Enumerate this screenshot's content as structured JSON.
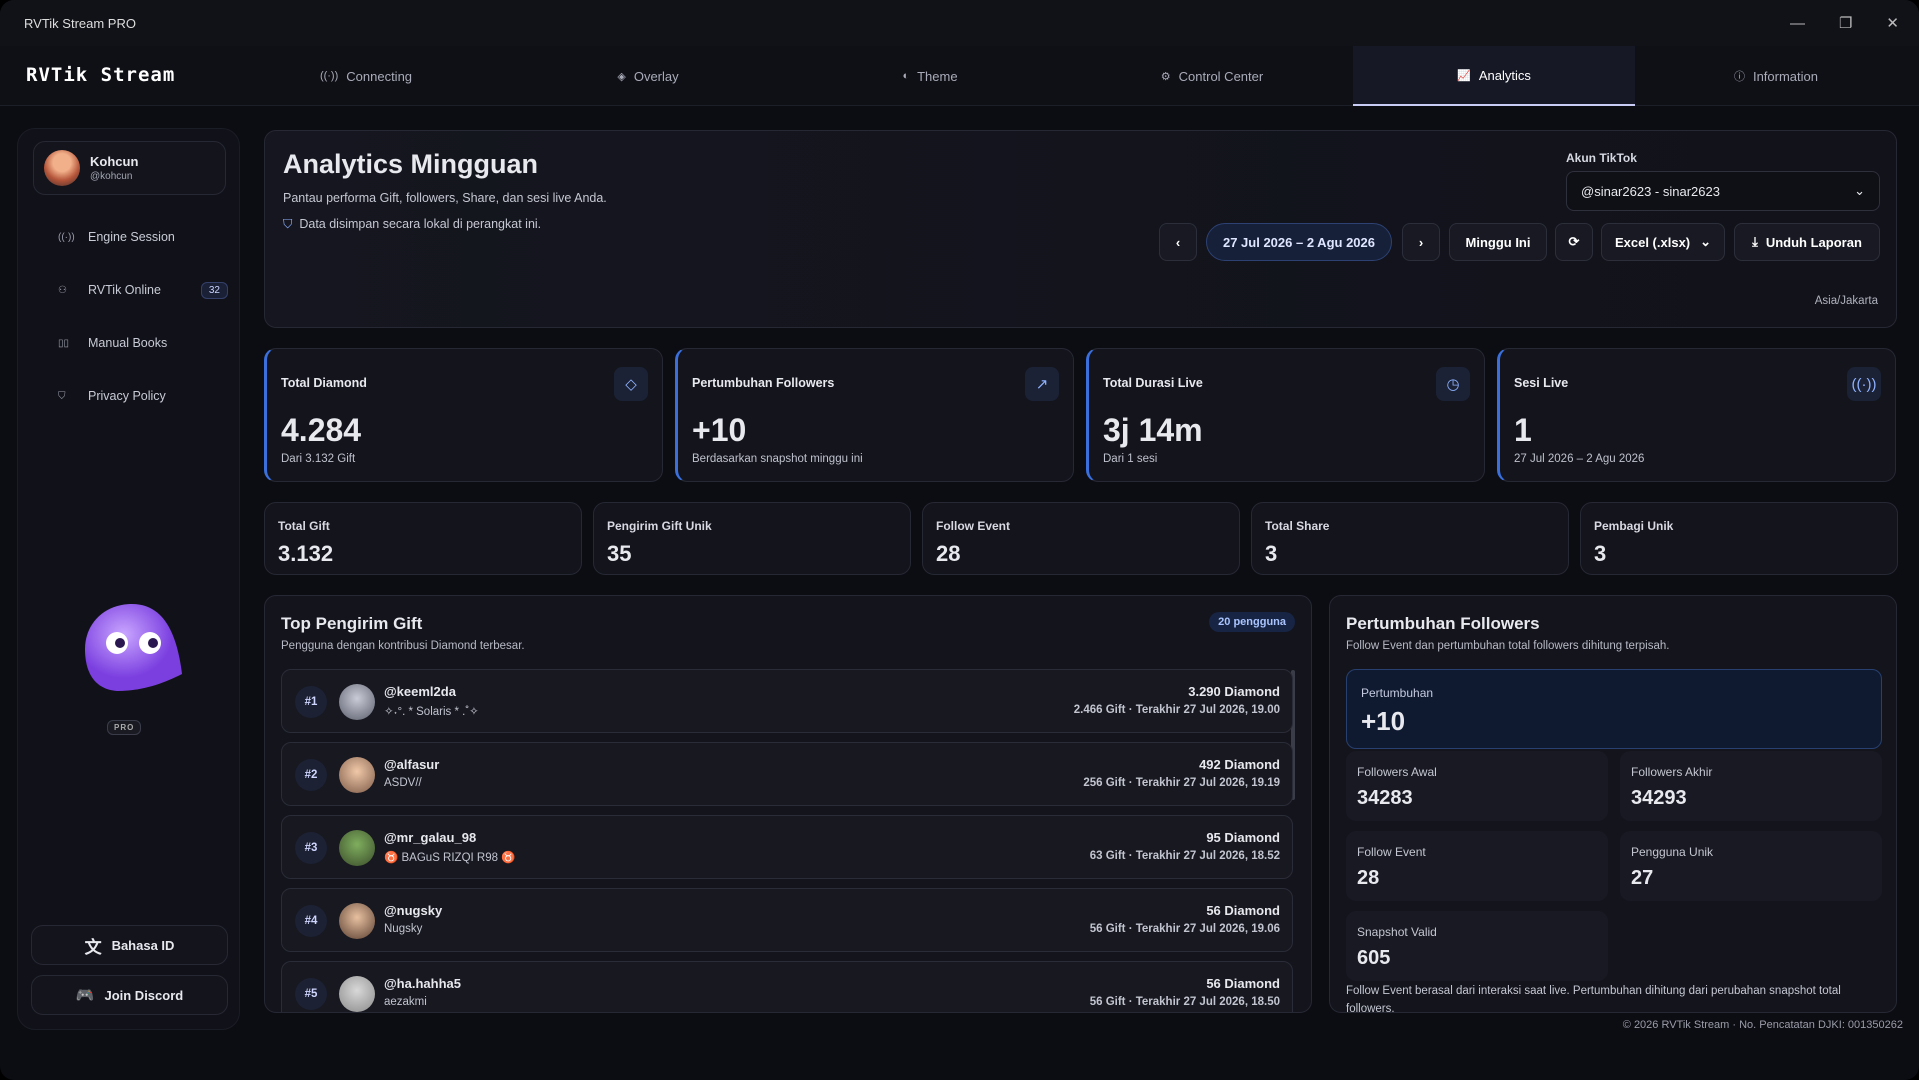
{
  "window": {
    "title": "RVTik Stream PRO"
  },
  "nav": {
    "brand": "RVTik Stream",
    "tabs": [
      "Connecting",
      "Overlay",
      "Theme",
      "Control Center",
      "Analytics",
      "Information"
    ],
    "active": 4
  },
  "sidebar": {
    "user": {
      "name": "Kohcun",
      "handle": "@kohcun"
    },
    "items": [
      {
        "label": "Engine Session"
      },
      {
        "label": "RVTik Online",
        "badge": "32"
      },
      {
        "label": "Manual Books"
      },
      {
        "label": "Privacy Policy"
      }
    ],
    "pro": "PRO",
    "language": "Bahasa ID",
    "discord": "Join Discord"
  },
  "header": {
    "title": "Analytics Mingguan",
    "subtitle": "Pantau performa Gift, followers, Share, dan sesi live Anda.",
    "note": "Data disimpan secara lokal di perangkat ini.",
    "account_label": "Akun TikTok",
    "account": "@sinar2623 - sinar2623",
    "date_range": "27 Jul 2026 – 2 Agu 2026",
    "this_week": "Minggu Ini",
    "format": "Excel (.xlsx)",
    "download": "Unduh Laporan",
    "timezone": "Asia/Jakarta"
  },
  "stats": [
    {
      "label": "Total Diamond",
      "value": "4.284",
      "sub": "Dari 3.132 Gift"
    },
    {
      "label": "Pertumbuhan Followers",
      "value": "+10",
      "sub": "Berdasarkan snapshot minggu ini"
    },
    {
      "label": "Total Durasi Live",
      "value": "3j 14m",
      "sub": "Dari 1 sesi"
    },
    {
      "label": "Sesi Live",
      "value": "1",
      "sub": "27 Jul 2026 – 2 Agu 2026"
    }
  ],
  "mini_stats": [
    {
      "label": "Total Gift",
      "value": "3.132"
    },
    {
      "label": "Pengirim Gift Unik",
      "value": "35"
    },
    {
      "label": "Follow Event",
      "value": "28"
    },
    {
      "label": "Total Share",
      "value": "3"
    },
    {
      "label": "Pembagi Unik",
      "value": "3"
    }
  ],
  "top_gifters": {
    "title": "Top Pengirim Gift",
    "subtitle": "Pengguna dengan kontribusi Diamond terbesar.",
    "badge": "20 pengguna",
    "rows": [
      {
        "rank": "#1",
        "user": "@keeml2da",
        "name": "✧˖°. * Solaris * .˚✧",
        "diamond": "3.290 Diamond",
        "detail": "2.466 Gift · Terakhir 27 Jul 2026, 19.00"
      },
      {
        "rank": "#2",
        "user": "@alfasur",
        "name": "ASDV//",
        "diamond": "492 Diamond",
        "detail": "256 Gift · Terakhir 27 Jul 2026, 19.19"
      },
      {
        "rank": "#3",
        "user": "@mr_galau_98",
        "name": "♉ BAGuS RIZQI R98 ♉",
        "diamond": "95 Diamond",
        "detail": "63 Gift · Terakhir 27 Jul 2026, 18.52"
      },
      {
        "rank": "#4",
        "user": "@nugsky",
        "name": "Nugsky",
        "diamond": "56 Diamond",
        "detail": "56 Gift · Terakhir 27 Jul 2026, 19.06"
      },
      {
        "rank": "#5",
        "user": "@ha.hahha5",
        "name": "aezakmi",
        "diamond": "56 Diamond",
        "detail": "56 Gift · Terakhir 27 Jul 2026, 18.50"
      }
    ]
  },
  "followers": {
    "title": "Pertumbuhan Followers",
    "subtitle": "Follow Event dan pertumbuhan total followers dihitung terpisah.",
    "growth_label": "Pertumbuhan",
    "growth": "+10",
    "cells": [
      {
        "label": "Followers Awal",
        "value": "34283"
      },
      {
        "label": "Followers Akhir",
        "value": "34293"
      },
      {
        "label": "Follow Event",
        "value": "28"
      },
      {
        "label": "Pengguna Unik",
        "value": "27"
      },
      {
        "label": "Snapshot Valid",
        "value": "605"
      }
    ],
    "note": "Follow Event berasal dari interaksi saat live. Pertumbuhan dihitung dari perubahan snapshot total followers."
  },
  "footer": "© 2026 RVTik Stream · No. Pencatatan DJKI: 001350262"
}
